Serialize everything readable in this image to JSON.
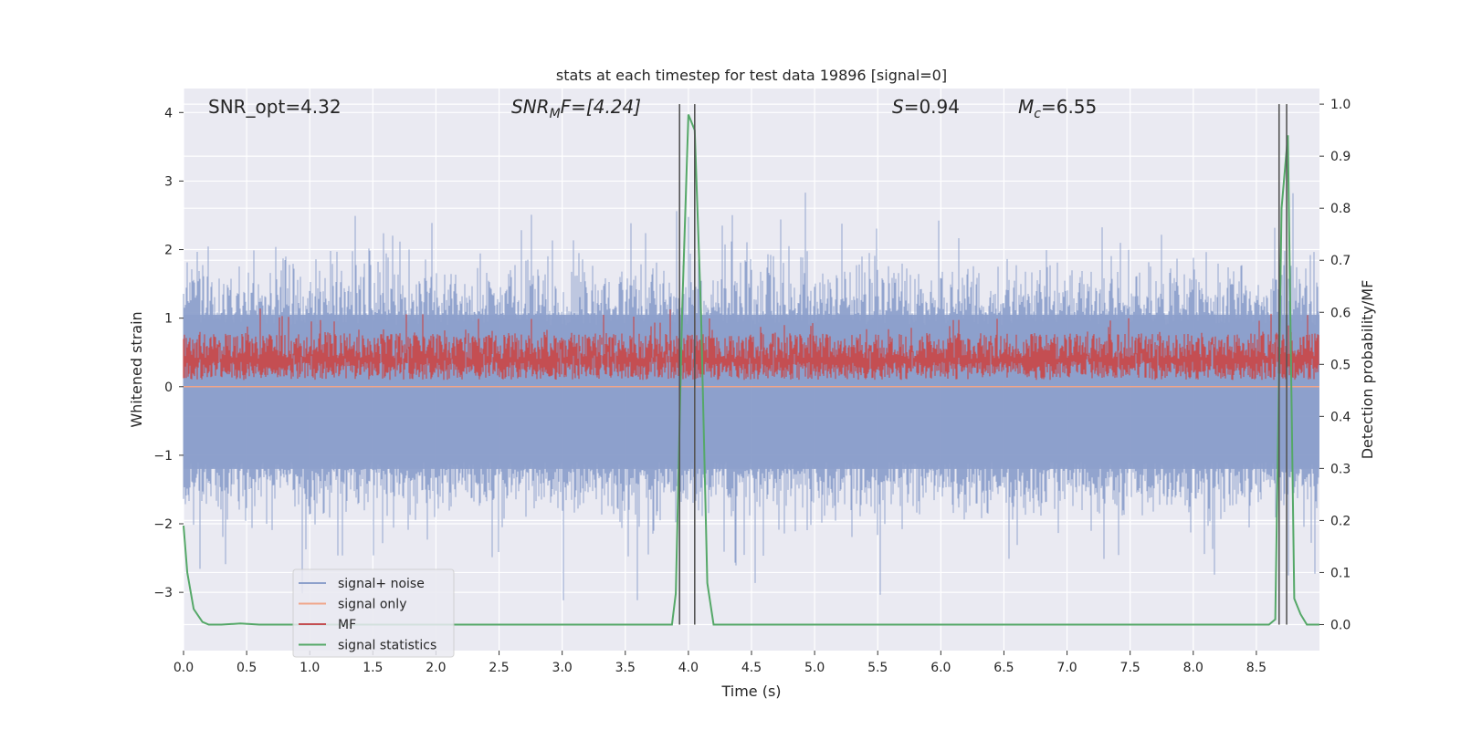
{
  "chart_data": {
    "type": "line",
    "title": "stats at each timestep for test data 19896 [signal=0]",
    "xlabel": "Time (s)",
    "ylabel_left": "Whitened strain",
    "ylabel_right": "Detection probability/MF",
    "xlim": [
      0.0,
      9.0
    ],
    "ylim_left": [
      -3.85,
      4.35
    ],
    "ylim_right": [
      -0.05,
      1.03
    ],
    "xticks": [
      "0.0",
      "0.5",
      "1.0",
      "1.5",
      "2.0",
      "2.5",
      "3.0",
      "3.5",
      "4.0",
      "4.5",
      "5.0",
      "5.5",
      "6.0",
      "6.5",
      "7.0",
      "7.5",
      "8.0",
      "8.5"
    ],
    "yticks_left": [
      "4",
      "3",
      "2",
      "1",
      "0",
      "−1",
      "−2",
      "−3"
    ],
    "yticks_right": [
      "1.0",
      "0.9",
      "0.8",
      "0.7",
      "0.6",
      "0.5",
      "0.4",
      "0.3",
      "0.2",
      "0.1",
      "0.0"
    ],
    "grid": true,
    "annotations": {
      "snr_opt": "SNR_opt=4.32",
      "snr_mf_base": "SNR",
      "snr_mf_sub": "M",
      "snr_mf_rest": "F=[4.24]",
      "s_sym": "S",
      "s_val": "=0.94",
      "mc_sym": "M",
      "mc_sub": "c",
      "mc_val": "=6.55"
    },
    "legend": {
      "position": "lower-left",
      "entries": [
        {
          "label": "signal+ noise",
          "color": "#8da0cb"
        },
        {
          "label": "signal only",
          "color": "#f0a58a"
        },
        {
          "label": "MF",
          "color": "#c44e52"
        },
        {
          "label": "signal statistics",
          "color": "#55a868"
        }
      ]
    },
    "series": [
      {
        "name": "signal+ noise",
        "axis": "left",
        "color": "#8da0cb",
        "description_range": [
          -3.5,
          3.7
        ]
      },
      {
        "name": "signal only",
        "axis": "left",
        "color": "#f0a58a",
        "values_constant": 0.0
      },
      {
        "name": "MF",
        "axis": "right",
        "color": "#c44e52",
        "band": [
          0.48,
          0.58
        ]
      },
      {
        "name": "signal statistics",
        "axis": "right",
        "color": "#55a868",
        "x": [
          0.0,
          0.03,
          0.08,
          0.15,
          0.2,
          0.3,
          0.45,
          0.6,
          1.0,
          2.0,
          3.0,
          3.87,
          3.9,
          3.95,
          4.0,
          4.05,
          4.1,
          4.15,
          4.2,
          4.25,
          5.0,
          6.0,
          7.0,
          8.0,
          8.6,
          8.65,
          8.7,
          8.75,
          8.8,
          8.85,
          8.9,
          9.0
        ],
        "y": [
          0.19,
          0.1,
          0.03,
          0.005,
          0.0,
          0.0,
          0.002,
          0.0,
          0.0,
          0.0,
          0.0,
          0.0,
          0.06,
          0.6,
          0.98,
          0.95,
          0.6,
          0.08,
          0.0,
          0.0,
          0.0,
          0.0,
          0.0,
          0.0,
          0.0,
          0.01,
          0.8,
          0.94,
          0.05,
          0.02,
          0.0,
          0.0
        ]
      }
    ],
    "vertical_markers": [
      3.93,
      4.05,
      8.68,
      8.74
    ]
  }
}
